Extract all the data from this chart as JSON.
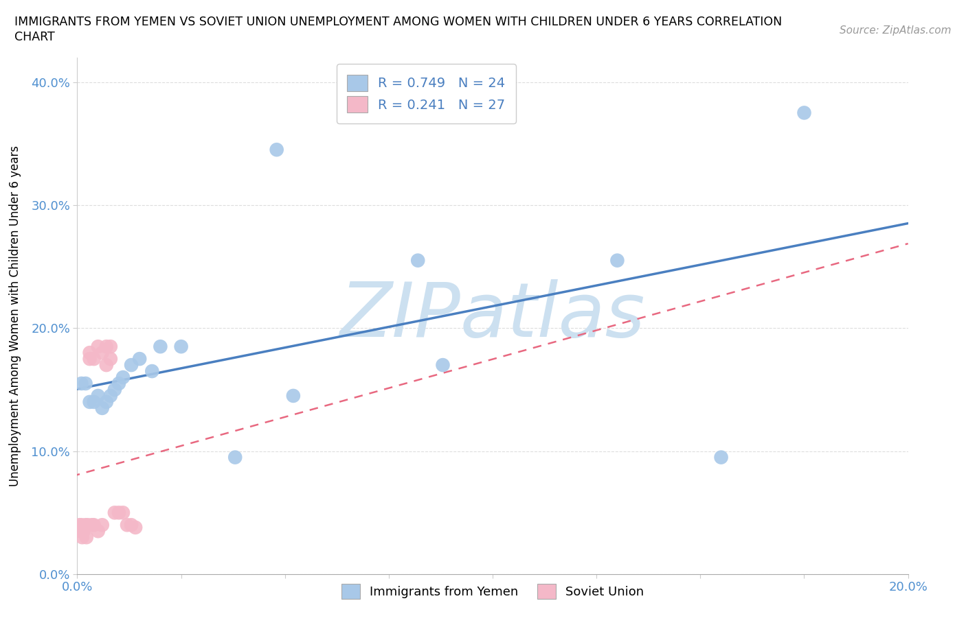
{
  "title_line1": "IMMIGRANTS FROM YEMEN VS SOVIET UNION UNEMPLOYMENT AMONG WOMEN WITH CHILDREN UNDER 6 YEARS CORRELATION",
  "title_line2": "CHART",
  "source": "Source: ZipAtlas.com",
  "ylabel": "Unemployment Among Women with Children Under 6 years",
  "xlim": [
    0.0,
    0.2
  ],
  "ylim": [
    0.0,
    0.42
  ],
  "xticks": [
    0.0,
    0.025,
    0.05,
    0.075,
    0.1,
    0.125,
    0.15,
    0.175,
    0.2
  ],
  "yticks": [
    0.0,
    0.1,
    0.2,
    0.3,
    0.4
  ],
  "R_yemen": 0.749,
  "N_yemen": 24,
  "R_soviet": 0.241,
  "N_soviet": 27,
  "yemen_color": "#a8c8e8",
  "soviet_color": "#f4b8c8",
  "yemen_line_color": "#4a7fc0",
  "soviet_line_color": "#e86880",
  "tick_color": "#5090d0",
  "watermark_color": "#cce0f0",
  "legend_labels": [
    "Immigrants from Yemen",
    "Soviet Union"
  ],
  "yemen_x": [
    0.001,
    0.002,
    0.003,
    0.004,
    0.005,
    0.006,
    0.007,
    0.008,
    0.009,
    0.01,
    0.011,
    0.013,
    0.015,
    0.02,
    0.052,
    0.082,
    0.088,
    0.13,
    0.155,
    0.175,
    0.018,
    0.025,
    0.038,
    0.048
  ],
  "yemen_y": [
    0.155,
    0.155,
    0.14,
    0.14,
    0.145,
    0.135,
    0.14,
    0.145,
    0.15,
    0.155,
    0.16,
    0.17,
    0.175,
    0.185,
    0.145,
    0.255,
    0.17,
    0.255,
    0.095,
    0.375,
    0.165,
    0.185,
    0.095,
    0.345
  ],
  "soviet_x": [
    0.0005,
    0.0008,
    0.001,
    0.0012,
    0.0015,
    0.002,
    0.0022,
    0.0025,
    0.003,
    0.003,
    0.0035,
    0.004,
    0.004,
    0.005,
    0.005,
    0.006,
    0.006,
    0.007,
    0.007,
    0.008,
    0.008,
    0.009,
    0.01,
    0.011,
    0.012,
    0.013,
    0.014
  ],
  "soviet_y": [
    0.04,
    0.035,
    0.04,
    0.03,
    0.035,
    0.04,
    0.03,
    0.04,
    0.175,
    0.18,
    0.04,
    0.04,
    0.175,
    0.035,
    0.185,
    0.04,
    0.18,
    0.17,
    0.185,
    0.175,
    0.185,
    0.05,
    0.05,
    0.05,
    0.04,
    0.04,
    0.038
  ],
  "dot_size": 220
}
